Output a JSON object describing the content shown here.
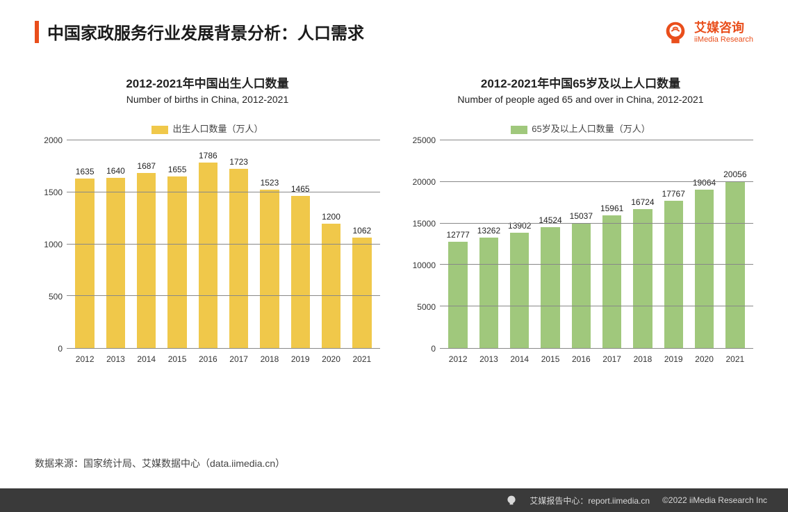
{
  "header": {
    "title": "中国家政服务行业发展背景分析：人口需求",
    "accent_color": "#e94e1b",
    "logo_cn": "艾媒咨询",
    "logo_en": "iiMedia Research",
    "logo_color": "#e94e1b"
  },
  "chart1": {
    "type": "bar",
    "title_cn": "2012-2021年中国出生人口数量",
    "title_en": "Number of births in China, 2012-2021",
    "legend_label": "出生人口数量（万人）",
    "bar_color": "#f0c84a",
    "categories": [
      "2012",
      "2013",
      "2014",
      "2015",
      "2016",
      "2017",
      "2018",
      "2019",
      "2020",
      "2021"
    ],
    "values": [
      1635,
      1640,
      1687,
      1655,
      1786,
      1723,
      1523,
      1465,
      1200,
      1062
    ],
    "ylim": [
      0,
      2000
    ],
    "ytick_step": 500,
    "title_fontsize": 17,
    "label_fontsize": 12,
    "grid_color": "#888888",
    "background_color": "#ffffff",
    "bar_width": 0.62
  },
  "chart2": {
    "type": "bar",
    "title_cn": "2012-2021年中国65岁及以上人口数量",
    "title_en": "Number of people aged 65 and over in China, 2012-2021",
    "legend_label": "65岁及以上人口数量（万人）",
    "bar_color": "#a0c87c",
    "categories": [
      "2012",
      "2013",
      "2014",
      "2015",
      "2016",
      "2017",
      "2018",
      "2019",
      "2020",
      "2021"
    ],
    "values": [
      12777,
      13262,
      13902,
      14524,
      15037,
      15961,
      16724,
      17767,
      19064,
      20056
    ],
    "ylim": [
      0,
      25000
    ],
    "ytick_step": 5000,
    "title_fontsize": 17,
    "label_fontsize": 12,
    "grid_color": "#888888",
    "background_color": "#ffffff",
    "bar_width": 0.62
  },
  "source": "数据来源：国家统计局、艾媒数据中心（data.iimedia.cn）",
  "footer": {
    "report_label": "艾媒报告中心：",
    "report_url": "report.iimedia.cn",
    "copyright": "©2022  iiMedia Research  Inc",
    "bg_color": "#3a3a3a",
    "text_color": "#d8d8d8"
  }
}
